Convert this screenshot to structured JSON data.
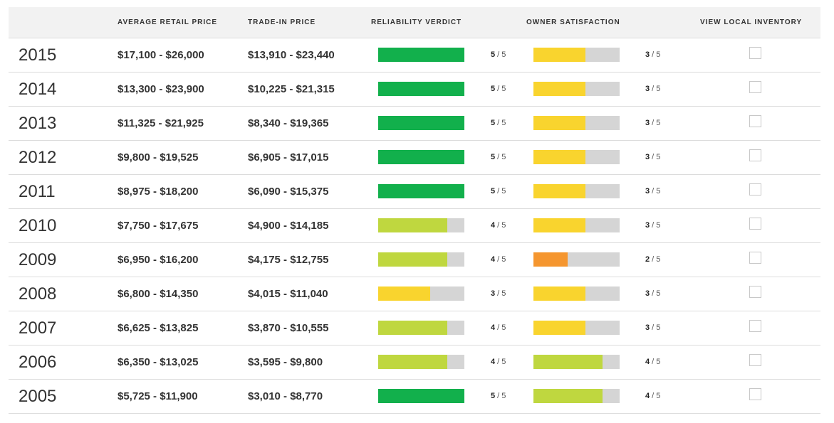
{
  "headers": {
    "avg_retail": "AVERAGE RETAIL PRICE",
    "trade_in": "TRADE-IN PRICE",
    "reliability": "RELIABILITY VERDICT",
    "satisfaction": "OWNER SATISFACTION",
    "inventory": "VIEW LOCAL INVENTORY"
  },
  "score_max": 5,
  "colors": {
    "green": "#12b04c",
    "lime": "#bfd73f",
    "yellow": "#f9d42e",
    "orange": "#f5962f",
    "track": "#d5d5d5"
  },
  "rows": [
    {
      "year": "2015",
      "retail": "$17,100 - $26,000",
      "trade": "$13,910 - $23,440",
      "reliability": 5,
      "satisfaction": 3
    },
    {
      "year": "2014",
      "retail": "$13,300 - $23,900",
      "trade": "$10,225 - $21,315",
      "reliability": 5,
      "satisfaction": 3
    },
    {
      "year": "2013",
      "retail": "$11,325 - $21,925",
      "trade": "$8,340 - $19,365",
      "reliability": 5,
      "satisfaction": 3
    },
    {
      "year": "2012",
      "retail": "$9,800 - $19,525",
      "trade": "$6,905 - $17,015",
      "reliability": 5,
      "satisfaction": 3
    },
    {
      "year": "2011",
      "retail": "$8,975 - $18,200",
      "trade": "$6,090 - $15,375",
      "reliability": 5,
      "satisfaction": 3
    },
    {
      "year": "2010",
      "retail": "$7,750 - $17,675",
      "trade": "$4,900 - $14,185",
      "reliability": 4,
      "satisfaction": 3
    },
    {
      "year": "2009",
      "retail": "$6,950 - $16,200",
      "trade": "$4,175 - $12,755",
      "reliability": 4,
      "satisfaction": 2
    },
    {
      "year": "2008",
      "retail": "$6,800 - $14,350",
      "trade": "$4,015 - $11,040",
      "reliability": 3,
      "satisfaction": 3
    },
    {
      "year": "2007",
      "retail": "$6,625 - $13,825",
      "trade": "$3,870 - $10,555",
      "reliability": 4,
      "satisfaction": 3
    },
    {
      "year": "2006",
      "retail": "$6,350 - $13,025",
      "trade": "$3,595 - $9,800",
      "reliability": 4,
      "satisfaction": 4
    },
    {
      "year": "2005",
      "retail": "$5,725 - $11,900",
      "trade": "$3,010 - $8,770",
      "reliability": 5,
      "satisfaction": 4
    }
  ]
}
